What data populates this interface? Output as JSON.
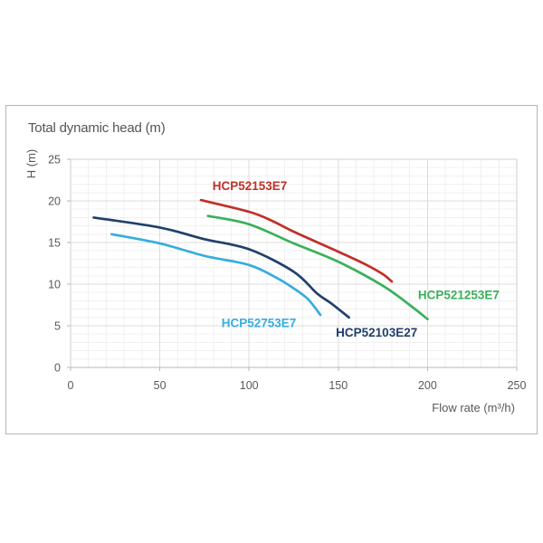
{
  "chart_data": {
    "type": "line",
    "title": "Total dynamic head (m)",
    "ylabel": "H (m)",
    "xlabel": "Flow rate (m³/h)",
    "xlim": [
      0,
      250
    ],
    "ylim": [
      0,
      25
    ],
    "x_ticks": [
      0,
      50,
      100,
      150,
      200,
      250
    ],
    "y_ticks": [
      0,
      5,
      10,
      15,
      20,
      25
    ],
    "x_minor_step": 10,
    "y_minor_step": 1,
    "grid": "major+minor",
    "legend_position": "inline-labels",
    "axis_text_color": "#595959",
    "grid_minor_color": "#f0f0f0",
    "grid_major_color": "#dcdcdc",
    "plot_border_color": "#cfcfcf",
    "series": [
      {
        "name": "HCP52153E7",
        "color": "#bf3029",
        "points": [
          [
            73,
            20.1
          ],
          [
            100,
            18.7
          ],
          [
            113,
            17.6
          ],
          [
            125,
            16.3
          ],
          [
            150,
            13.9
          ],
          [
            165,
            12.4
          ],
          [
            175,
            11.2
          ],
          [
            180,
            10.3
          ]
        ],
        "label_pos": [
          100.4,
          21.8
        ]
      },
      {
        "name": "HCP521253E7",
        "color": "#3bb05a",
        "points": [
          [
            77,
            18.2
          ],
          [
            100,
            17.2
          ],
          [
            125,
            14.9
          ],
          [
            150,
            12.7
          ],
          [
            175,
            9.8
          ],
          [
            190,
            7.5
          ],
          [
            200,
            5.8
          ]
        ],
        "label_pos": [
          217.5,
          8.7
        ]
      },
      {
        "name": "HCP52103E27",
        "color": "#20406b",
        "points": [
          [
            13,
            18.0
          ],
          [
            50,
            16.8
          ],
          [
            75,
            15.4
          ],
          [
            100,
            14.2
          ],
          [
            125,
            11.5
          ],
          [
            138,
            8.9
          ],
          [
            146,
            7.7
          ],
          [
            156,
            6.0
          ]
        ],
        "label_pos": [
          171.5,
          4.2
        ]
      },
      {
        "name": "HCP52753E7",
        "color": "#35addf",
        "points": [
          [
            23,
            16.0
          ],
          [
            50,
            14.9
          ],
          [
            75,
            13.4
          ],
          [
            100,
            12.3
          ],
          [
            115,
            10.8
          ],
          [
            125,
            9.5
          ],
          [
            133,
            8.2
          ],
          [
            140,
            6.3
          ]
        ],
        "label_pos": [
          105.5,
          5.3
        ]
      }
    ]
  }
}
